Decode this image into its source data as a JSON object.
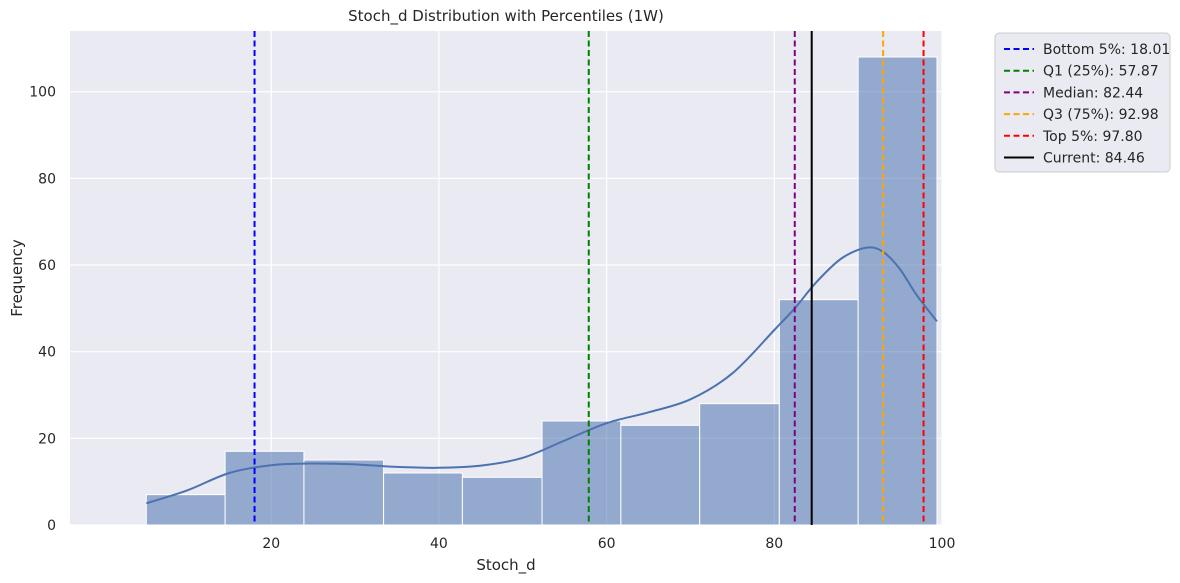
{
  "chart_data": {
    "type": "histogram",
    "title": "Stoch_d Distribution with Percentiles (1W)",
    "xlabel": "Stoch_d",
    "ylabel": "Frequency",
    "xlim": [
      -4,
      100
    ],
    "ylim": [
      0,
      114
    ],
    "xticks": [
      20,
      40,
      60,
      80,
      100
    ],
    "yticks": [
      0,
      20,
      40,
      60,
      80,
      100
    ],
    "grid": true,
    "legend_position": "outside-top-right",
    "colors": {
      "plot_background": "#EAEAF2",
      "bar_fill": "#4C72B0",
      "bar_edge": "#FFFFFF",
      "kde_line": "#4C72B0",
      "grid": "#FFFFFF"
    },
    "bins": [
      {
        "x0": 5.1,
        "x1": 14.5,
        "count": 7
      },
      {
        "x0": 14.5,
        "x1": 23.9,
        "count": 17
      },
      {
        "x0": 23.9,
        "x1": 33.4,
        "count": 15
      },
      {
        "x0": 33.4,
        "x1": 42.8,
        "count": 12
      },
      {
        "x0": 42.8,
        "x1": 52.3,
        "count": 11
      },
      {
        "x0": 52.3,
        "x1": 61.7,
        "count": 24
      },
      {
        "x0": 61.7,
        "x1": 71.1,
        "count": 23
      },
      {
        "x0": 71.1,
        "x1": 80.6,
        "count": 28
      },
      {
        "x0": 80.6,
        "x1": 90.0,
        "count": 52
      },
      {
        "x0": 90.0,
        "x1": 99.4,
        "count": 108
      }
    ],
    "kde": {
      "x": [
        5.1,
        10,
        15,
        20,
        25,
        30,
        35,
        40,
        45,
        50,
        55,
        60,
        65,
        70,
        75,
        80,
        82.44,
        85,
        88,
        91,
        93,
        95,
        97,
        99.4
      ],
      "y": [
        5,
        8,
        12,
        13.8,
        14.2,
        14,
        13.4,
        13.2,
        13.7,
        15.5,
        19.5,
        23.5,
        26,
        29,
        35,
        45,
        50,
        56,
        61.5,
        64,
        63,
        59,
        53,
        47
      ]
    },
    "reference_lines": [
      {
        "label": "Bottom 5%: 18.01",
        "x": 18.01,
        "color": "#0000FF",
        "style": "dashed"
      },
      {
        "label": "Q1 (25%): 57.87",
        "x": 57.87,
        "color": "#008000",
        "style": "dashed"
      },
      {
        "label": "Median: 82.44",
        "x": 82.44,
        "color": "#800080",
        "style": "dashed"
      },
      {
        "label": "Q3 (75%): 92.98",
        "x": 92.98,
        "color": "#FFA500",
        "style": "dashed"
      },
      {
        "label": "Top 5%: 97.80",
        "x": 97.8,
        "color": "#FF0000",
        "style": "dashed"
      },
      {
        "label": "Current: 84.46",
        "x": 84.46,
        "color": "#000000",
        "style": "solid"
      }
    ]
  }
}
